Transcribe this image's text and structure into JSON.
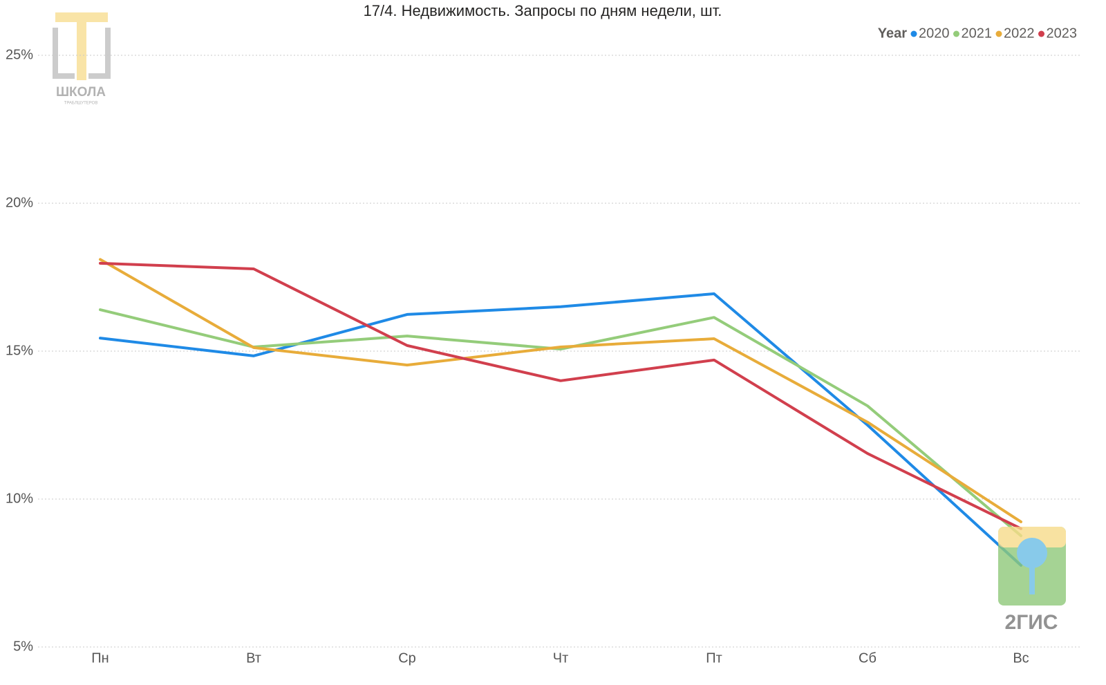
{
  "chart_data": {
    "type": "line",
    "title": "17/4. Недвижимость. Запросы по дням недели, шт.",
    "legend_title": "Year",
    "legend_position": "top-right",
    "logos": [
      "ШКОЛА",
      "ТРАБЛШУТЕРОВ",
      "2ГИС"
    ],
    "categories": [
      "Пн",
      "Вт",
      "Ср",
      "Чт",
      "Пт",
      "Сб",
      "Вс"
    ],
    "series": [
      {
        "name": "2020",
        "color": "#1f8ae6",
        "values": [
          15.44,
          14.84,
          16.24,
          16.5,
          16.94,
          12.5,
          7.76
        ]
      },
      {
        "name": "2021",
        "color": "#94cc7a",
        "values": [
          16.4,
          15.14,
          15.51,
          15.07,
          16.14,
          13.15,
          8.76
        ]
      },
      {
        "name": "2022",
        "color": "#e8ac3a",
        "values": [
          18.1,
          15.12,
          14.53,
          15.14,
          15.42,
          12.6,
          9.23
        ]
      },
      {
        "name": "2023",
        "color": "#d13f4d",
        "values": [
          17.97,
          17.78,
          15.19,
          14.0,
          14.7,
          11.54,
          9.0
        ]
      }
    ],
    "ylim": [
      5,
      25
    ],
    "yticks": [
      {
        "value": 5,
        "label": "5%"
      },
      {
        "value": 10,
        "label": "10%"
      },
      {
        "value": 15,
        "label": "15%"
      },
      {
        "value": 20,
        "label": "20%"
      },
      {
        "value": 25,
        "label": "25%"
      }
    ],
    "grid": true
  }
}
